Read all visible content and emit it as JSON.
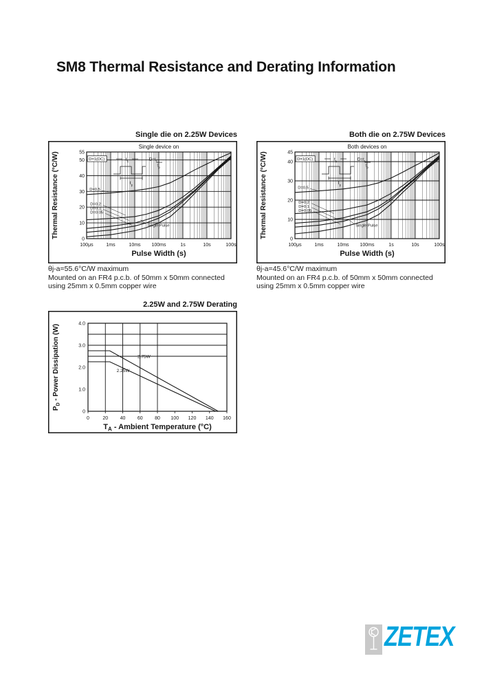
{
  "page": {
    "title": "SM8 Thermal Resistance and Derating Information"
  },
  "colors": {
    "brand_cyan": "#00A3DD",
    "logo_gray": "#C9C9C9",
    "ink": "#161616"
  },
  "logo": {
    "text": "ZETEX",
    "symbol": "transistor-icon"
  },
  "notes": {
    "single_lines": [
      "θj-a=55.6°C/W maximum",
      "Mounted on an FR4 p.c.b. of 50mm x 50mm connected",
      "using 25mm x 0.5mm copper wire"
    ],
    "both_lines": [
      "θj-a=45.6°C/W maximum",
      "Mounted on an FR4 p.c.b. of 50mm x 50mm connected",
      "using 25mm x 0.5mm copper wire"
    ]
  },
  "chart_data": [
    {
      "id": "single",
      "renderer": "thermal",
      "type": "line",
      "title": "Single die on 2.25W Devices",
      "inner_title": "Single device on",
      "ylabel": "Thermal Resistance (°C/W)",
      "xlabel": "Pulse Width (s)",
      "x_scale": "log",
      "xlim": [
        0.0001,
        100
      ],
      "ylim": [
        0,
        55
      ],
      "yticks": [
        0,
        10,
        20,
        30,
        40,
        50,
        55
      ],
      "xtick_labels": [
        "100μs",
        "1ms",
        "10ms",
        "100ms",
        "1s",
        "10s",
        "100s"
      ],
      "legend_position": "none",
      "grid": "log-minor",
      "series": [
        {
          "name": "D=0.5",
          "points": [
            [
              0.0001,
              28
            ],
            [
              0.001,
              29
            ],
            [
              0.01,
              30.5
            ],
            [
              0.03,
              31.5
            ],
            [
              0.1,
              33
            ],
            [
              0.3,
              35.5
            ],
            [
              1,
              39.5
            ],
            [
              3,
              43.5
            ],
            [
              10,
              47.5
            ],
            [
              30,
              51
            ],
            [
              100,
              54.5
            ]
          ]
        },
        {
          "name": "D=0.2",
          "points": [
            [
              0.0001,
              12
            ],
            [
              0.001,
              12.8
            ],
            [
              0.01,
              14
            ],
            [
              0.03,
              15.5
            ],
            [
              0.1,
              18
            ],
            [
              0.3,
              21.5
            ],
            [
              1,
              26.5
            ],
            [
              3,
              32
            ],
            [
              10,
              39
            ],
            [
              30,
              45.5
            ],
            [
              100,
              52.5
            ]
          ]
        },
        {
          "name": "D=0.1",
          "points": [
            [
              0.0001,
              6.5
            ],
            [
              0.001,
              7.8
            ],
            [
              0.01,
              10
            ],
            [
              0.03,
              12
            ],
            [
              0.1,
              14.5
            ],
            [
              0.3,
              18.5
            ],
            [
              1,
              24.5
            ],
            [
              3,
              30.5
            ],
            [
              10,
              38
            ],
            [
              30,
              45
            ],
            [
              100,
              52
            ]
          ]
        },
        {
          "name": "D=0.05",
          "points": [
            [
              0.0001,
              4
            ],
            [
              0.001,
              5.5
            ],
            [
              0.01,
              8
            ],
            [
              0.03,
              10
            ],
            [
              0.1,
              13
            ],
            [
              0.3,
              17
            ],
            [
              1,
              23.5
            ],
            [
              3,
              29.8
            ],
            [
              10,
              37.5
            ],
            [
              30,
              44.5
            ],
            [
              100,
              51.5
            ]
          ]
        },
        {
          "name": "Single Pulse",
          "points": [
            [
              0.0001,
              1.2
            ],
            [
              0.001,
              2.5
            ],
            [
              0.01,
              5
            ],
            [
              0.03,
              7
            ],
            [
              0.1,
              10
            ],
            [
              0.3,
              14
            ],
            [
              1,
              21
            ],
            [
              3,
              28.5
            ],
            [
              10,
              36.5
            ],
            [
              30,
              44
            ],
            [
              100,
              51
            ]
          ]
        }
      ],
      "annotations": [
        {
          "text": "D=1(DC)",
          "fx": 0.015,
          "fy": 0.08,
          "boxed": true
        },
        {
          "text": "D=0.5",
          "fx": 0.02,
          "fy": 0.43,
          "line": [
            0.105,
            0.445,
            0.15,
            0.46
          ]
        },
        {
          "text": "D=0.2",
          "fx": 0.025,
          "fy": 0.6,
          "line": [
            0.115,
            0.615,
            0.27,
            0.73
          ]
        },
        {
          "text": "D=0.1",
          "fx": 0.025,
          "fy": 0.648,
          "line": [
            0.115,
            0.662,
            0.295,
            0.79
          ]
        },
        {
          "text": "D=0.05",
          "fx": 0.025,
          "fy": 0.696,
          "line": [
            0.13,
            0.71,
            0.315,
            0.845
          ]
        },
        {
          "text": "Single Pulse",
          "fx": 0.42,
          "fy": 0.845,
          "line": [
            0.41,
            0.83,
            0.373,
            0.782
          ]
        }
      ],
      "inset": {
        "d_eq": "D=",
        "t1_main": "t",
        "t1_sub": "1",
        "tp_main": "t",
        "tp_sub": "p"
      }
    },
    {
      "id": "both",
      "renderer": "thermal",
      "type": "line",
      "title": "Both die on 2.75W Devices",
      "inner_title": "Both devices on",
      "ylabel": "Thermal Resistance (°C/W)",
      "xlabel": "Pulse Width (s)",
      "x_scale": "log",
      "xlim": [
        0.0001,
        100
      ],
      "ylim": [
        0,
        45
      ],
      "yticks": [
        0,
        10,
        20,
        30,
        40,
        45
      ],
      "xtick_labels": [
        "100μs",
        "1ms",
        "10ms",
        "100ms",
        "1s",
        "10s",
        "100s"
      ],
      "legend_position": "none",
      "grid": "log-minor",
      "series": [
        {
          "name": "D=0.5",
          "points": [
            [
              0.0001,
              24
            ],
            [
              0.001,
              24.8
            ],
            [
              0.01,
              25.8
            ],
            [
              0.1,
              27.5
            ],
            [
              0.3,
              29
            ],
            [
              1,
              31.5
            ],
            [
              3,
              34.5
            ],
            [
              10,
              38
            ],
            [
              30,
              41
            ],
            [
              100,
              44.5
            ]
          ]
        },
        {
          "name": "D=0.2",
          "points": [
            [
              0.0001,
              13
            ],
            [
              0.001,
              13.8
            ],
            [
              0.01,
              15
            ],
            [
              0.1,
              17.5
            ],
            [
              0.3,
              20
            ],
            [
              1,
              23.5
            ],
            [
              3,
              27.5
            ],
            [
              10,
              32.5
            ],
            [
              30,
              37.5
            ],
            [
              100,
              43
            ]
          ]
        },
        {
          "name": "D=0.1",
          "points": [
            [
              0.0001,
              8
            ],
            [
              0.001,
              9
            ],
            [
              0.01,
              10.8
            ],
            [
              0.1,
              14
            ],
            [
              0.3,
              16.8
            ],
            [
              1,
              21
            ],
            [
              3,
              26
            ],
            [
              10,
              31.5
            ],
            [
              30,
              37
            ],
            [
              100,
              42.5
            ]
          ]
        },
        {
          "name": "D=0.05",
          "points": [
            [
              0.0001,
              6
            ],
            [
              0.001,
              7
            ],
            [
              0.01,
              9
            ],
            [
              0.1,
              12.5
            ],
            [
              0.3,
              15.5
            ],
            [
              1,
              20
            ],
            [
              3,
              25.5
            ],
            [
              10,
              31
            ],
            [
              30,
              36.5
            ],
            [
              100,
              42
            ]
          ]
        },
        {
          "name": "Single Pulse",
          "points": [
            [
              0.0001,
              2.5
            ],
            [
              0.001,
              3.8
            ],
            [
              0.01,
              6
            ],
            [
              0.1,
              9.5
            ],
            [
              0.3,
              12.5
            ],
            [
              1,
              18
            ],
            [
              3,
              24
            ],
            [
              10,
              30
            ],
            [
              30,
              36
            ],
            [
              100,
              41.5
            ]
          ]
        }
      ],
      "annotations": [
        {
          "text": "D=1(DC)",
          "fx": 0.015,
          "fy": 0.08,
          "boxed": true
        },
        {
          "text": "D=0.5",
          "fx": 0.02,
          "fy": 0.41,
          "line": [
            0.105,
            0.425,
            0.15,
            0.44
          ]
        },
        {
          "text": "D=0.2",
          "fx": 0.025,
          "fy": 0.578,
          "line": [
            0.115,
            0.592,
            0.27,
            0.71
          ]
        },
        {
          "text": "D=0.1",
          "fx": 0.025,
          "fy": 0.627,
          "line": [
            0.115,
            0.64,
            0.295,
            0.775
          ]
        },
        {
          "text": "D=0.05",
          "fx": 0.025,
          "fy": 0.675,
          "line": [
            0.13,
            0.688,
            0.315,
            0.833
          ]
        },
        {
          "text": "Single Pulse",
          "fx": 0.42,
          "fy": 0.845,
          "line": [
            0.41,
            0.83,
            0.373,
            0.782
          ]
        }
      ],
      "inset": {
        "d_eq": "D=",
        "t1_main": "t",
        "t1_sub": "1",
        "tp_main": "t",
        "tp_sub": "p"
      }
    },
    {
      "id": "derating",
      "renderer": "derating",
      "type": "line",
      "title": "2.25W and 2.75W Derating",
      "ylabel_parts": [
        "P",
        "D",
        " - Power Dissipation (W)"
      ],
      "xlabel_parts": [
        "T",
        "A",
        " - Ambient Temperature (°C)"
      ],
      "xlim": [
        0,
        160
      ],
      "ylim": [
        0,
        4
      ],
      "xticks": [
        0,
        20,
        40,
        60,
        80,
        100,
        120,
        140,
        160
      ],
      "yticks": [
        0,
        1,
        2,
        3,
        4
      ],
      "ytick_labels": [
        "0",
        "1.0",
        "2.0",
        "3.0",
        "4.0"
      ],
      "vgrid": [
        20,
        40,
        60,
        80
      ],
      "hgrid": [
        2.5,
        3.0,
        3.5
      ],
      "legend_position": "none",
      "series": [
        {
          "name": "2.75W",
          "points": [
            [
              0,
              2.75
            ],
            [
              25,
              2.75
            ],
            [
              150,
              0
            ]
          ]
        },
        {
          "name": "2.25W",
          "points": [
            [
              0,
              2.25
            ],
            [
              25,
              2.25
            ],
            [
              147,
              0
            ]
          ]
        }
      ],
      "labels": [
        {
          "text": "2.75W",
          "x": 57,
          "y": 2.42
        },
        {
          "text": "2.25W",
          "x": 33,
          "y": 1.78
        }
      ]
    }
  ]
}
